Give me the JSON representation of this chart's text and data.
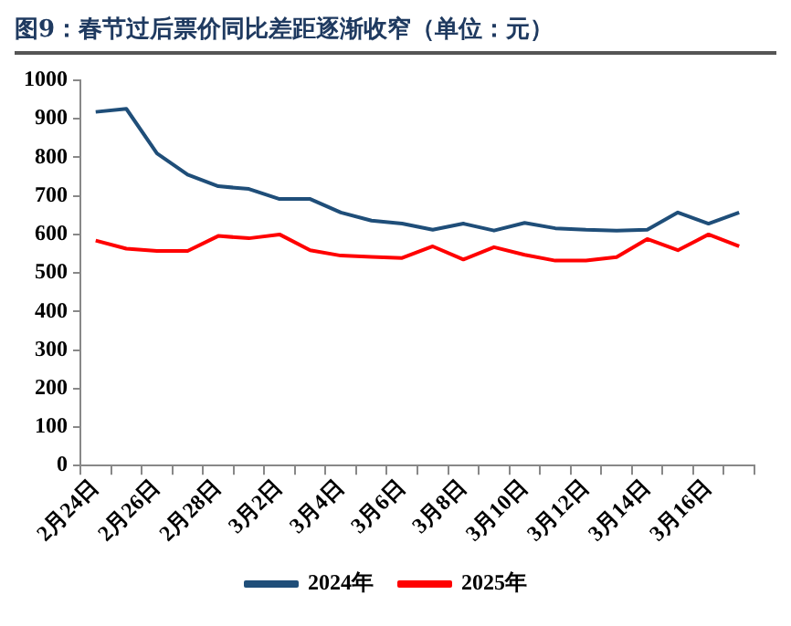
{
  "chart_data": {
    "type": "line",
    "title": "图9：春节过后票价同比差距逐渐收窄（单位：元）",
    "categories": [
      "2月24日",
      null,
      "2月26日",
      null,
      "2月28日",
      null,
      "3月2日",
      null,
      "3月4日",
      null,
      "3月6日",
      null,
      "3月8日",
      null,
      "3月10日",
      null,
      "3月12日",
      null,
      "3月14日",
      null,
      "3月16日",
      null
    ],
    "series": [
      {
        "name": "2024年",
        "color": "#1f4e79",
        "values": [
          918,
          926,
          810,
          755,
          725,
          718,
          692,
          692,
          657,
          636,
          628,
          612,
          628,
          610,
          630,
          616,
          612,
          610,
          612,
          657,
          628,
          657
        ]
      },
      {
        "name": "2025年",
        "color": "#ff0000",
        "values": [
          584,
          563,
          557,
          557,
          596,
          590,
          600,
          559,
          545,
          542,
          539,
          569,
          535,
          567,
          547,
          532,
          532,
          541,
          588,
          559,
          600,
          569
        ]
      }
    ],
    "ylim": [
      0,
      1000
    ],
    "yticks": [
      0,
      100,
      200,
      300,
      400,
      500,
      600,
      700,
      800,
      900,
      1000
    ],
    "grid": false,
    "legend": "bottom",
    "marker": "none",
    "line_style": "solid"
  }
}
